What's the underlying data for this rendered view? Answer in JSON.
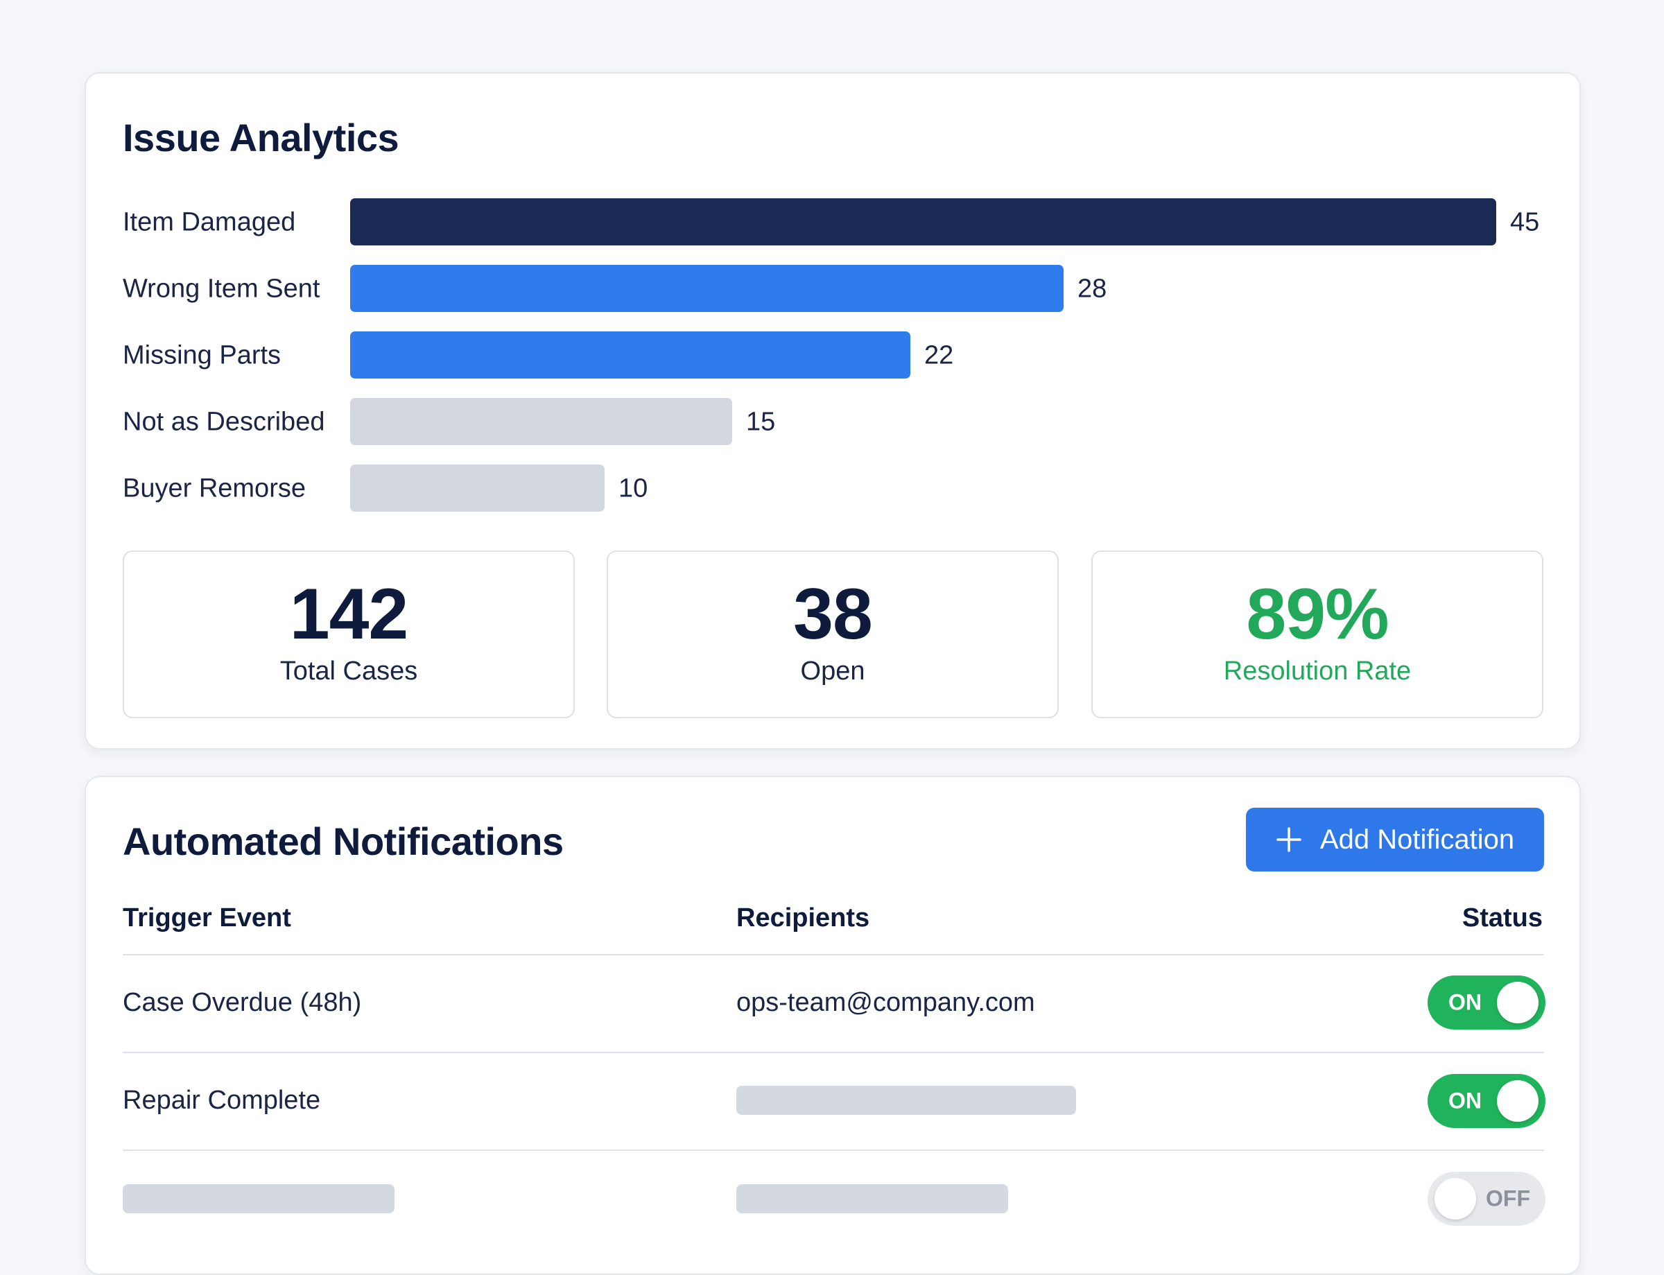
{
  "analytics": {
    "title": "Issue Analytics",
    "stats": {
      "total": {
        "value": "142",
        "label": "Total Cases"
      },
      "open": {
        "value": "38",
        "label": "Open"
      },
      "resolution": {
        "value": "89%",
        "label": "Resolution Rate"
      }
    }
  },
  "chart_data": {
    "type": "bar",
    "orientation": "horizontal",
    "categories": [
      "Item Damaged",
      "Wrong Item Sent",
      "Missing Parts",
      "Not as Described",
      "Buyer Remorse"
    ],
    "values": [
      45,
      28,
      22,
      15,
      10
    ],
    "value_labels": [
      "45",
      "28",
      "22",
      "15",
      "10"
    ],
    "colors": [
      "#1b2a55",
      "#2f7ced",
      "#2f7ced",
      "#d3d7df",
      "#d3d7df"
    ]
  },
  "notifications": {
    "title": "Automated Notifications",
    "add_button_label": "Add Notification",
    "columns": {
      "trigger": "Trigger Event",
      "recipients": "Recipients",
      "status": "Status"
    },
    "rows": [
      {
        "trigger": "Case Overdue (48h)",
        "recipients": "ops-team@company.com",
        "status": "ON",
        "enabled": true
      },
      {
        "trigger": "Repair Complete",
        "recipients": "",
        "status": "ON",
        "enabled": true
      },
      {
        "trigger": "",
        "recipients": "",
        "status": "OFF",
        "enabled": false
      }
    ]
  },
  "colors": {
    "navy": "#0f1b3d",
    "blue": "#2f78e9",
    "green": "#1fb35b",
    "placeholder_gray": "#d4d8e0"
  }
}
